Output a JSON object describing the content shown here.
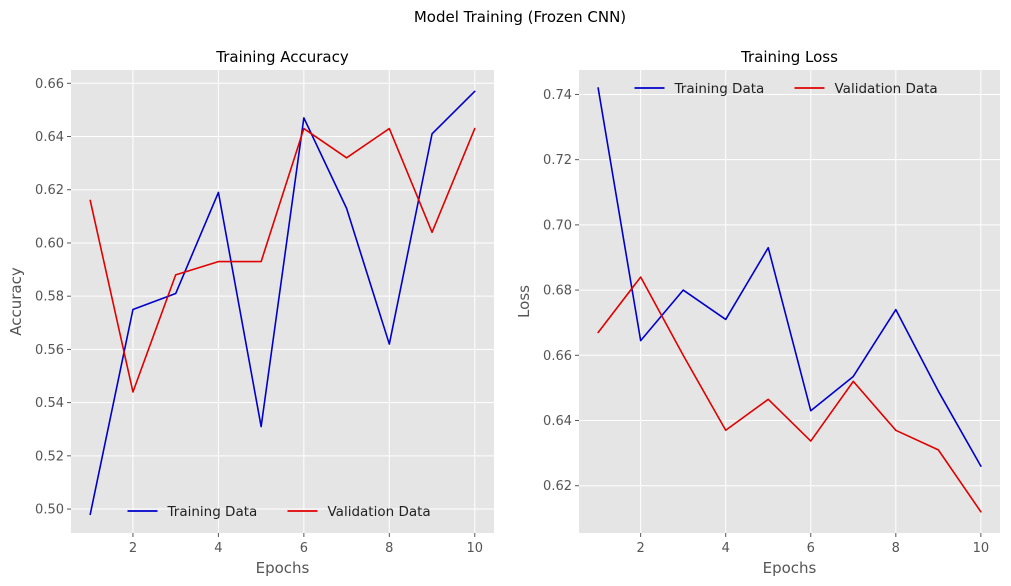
{
  "figure": {
    "suptitle": "Model Training (Frozen CNN)"
  },
  "chart_data": [
    {
      "type": "line",
      "title": "Training Accuracy",
      "xlabel": "Epochs",
      "ylabel": "Accuracy",
      "xlim": [
        0.55,
        10.45
      ],
      "ylim": [
        0.491,
        0.665
      ],
      "xticks": [
        2,
        4,
        6,
        8,
        10
      ],
      "yticks": [
        0.5,
        0.52,
        0.54,
        0.56,
        0.58,
        0.6,
        0.62,
        0.64,
        0.66
      ],
      "ytick_decimals": 2,
      "grid": true,
      "legend_position": "lower center",
      "legend": [
        "Training Data",
        "Validation Data"
      ],
      "x": [
        1,
        2,
        3,
        4,
        5,
        6,
        7,
        8,
        9,
        10
      ],
      "series": [
        {
          "name": "Training Data",
          "color": "#0000cc",
          "values": [
            0.498,
            0.575,
            0.581,
            0.619,
            0.531,
            0.647,
            0.613,
            0.562,
            0.641,
            0.657
          ]
        },
        {
          "name": "Validation Data",
          "color": "#e00000",
          "values": [
            0.616,
            0.544,
            0.588,
            0.593,
            0.593,
            0.643,
            0.632,
            0.643,
            0.604,
            0.643
          ]
        }
      ]
    },
    {
      "type": "line",
      "title": "Training Loss",
      "xlabel": "Epochs",
      "ylabel": "Loss",
      "xlim": [
        0.55,
        10.45
      ],
      "ylim": [
        0.6055,
        0.7475
      ],
      "xticks": [
        2,
        4,
        6,
        8,
        10
      ],
      "yticks": [
        0.62,
        0.64,
        0.66,
        0.68,
        0.7,
        0.72,
        0.74
      ],
      "ytick_decimals": 2,
      "grid": true,
      "legend_position": "upper center",
      "legend": [
        "Training Data",
        "Validation Data"
      ],
      "x": [
        1,
        2,
        3,
        4,
        5,
        6,
        7,
        8,
        9,
        10
      ],
      "series": [
        {
          "name": "Training Data",
          "color": "#0000cc",
          "values": [
            0.742,
            0.6645,
            0.68,
            0.671,
            0.693,
            0.643,
            0.6535,
            0.674,
            0.649,
            0.626
          ]
        },
        {
          "name": "Validation Data",
          "color": "#e00000",
          "values": [
            0.667,
            0.684,
            0.66,
            0.637,
            0.6465,
            0.6337,
            0.652,
            0.637,
            0.631,
            0.612
          ]
        }
      ]
    }
  ]
}
